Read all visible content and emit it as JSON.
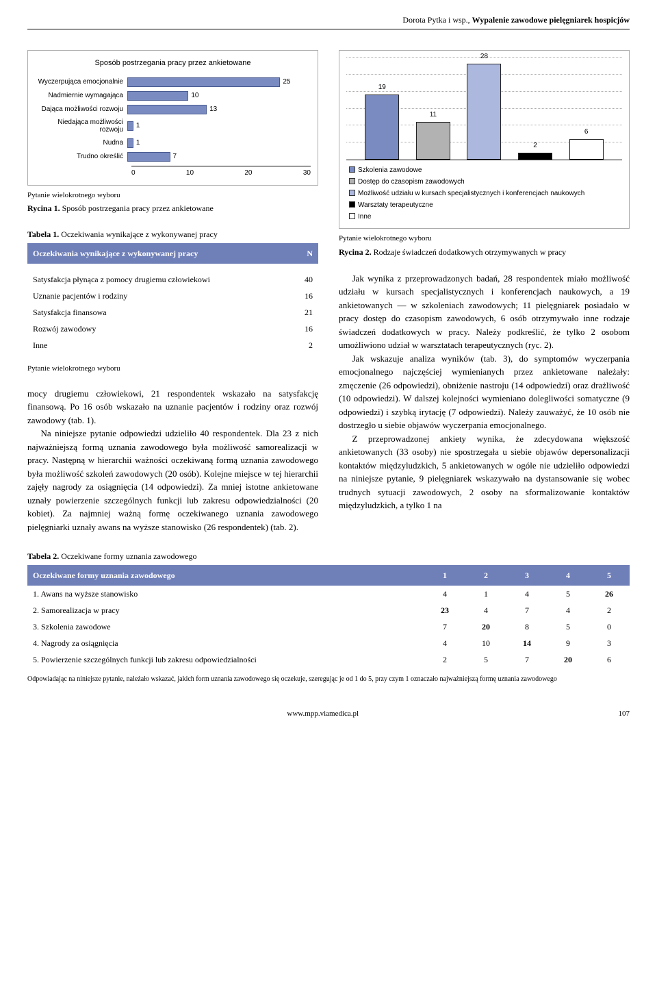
{
  "header": {
    "author": "Dorota Pytka i wsp.,",
    "title": "Wypalenie zawodowe pielęgniarek hospicjów"
  },
  "chart1": {
    "type": "bar-horizontal",
    "title": "Sposób postrzegania pracy przez ankietowane",
    "xmax": 30,
    "xticks": [
      "0",
      "10",
      "20",
      "30"
    ],
    "bar_color": "#7a8bc1",
    "bar_border": "#4a5b91",
    "rows": [
      {
        "label": "Wyczerpująca emocjonalnie",
        "value": 25
      },
      {
        "label": "Nadmiernie wymagająca",
        "value": 10
      },
      {
        "label": "Dająca możliwości rozwoju",
        "value": 13
      },
      {
        "label": "Niedająca możliwości rozwoju",
        "value": 1
      },
      {
        "label": "Nudna",
        "value": 1
      },
      {
        "label": "Trudno określić",
        "value": 7
      }
    ],
    "caption_note": "Pytanie wielokrotnego wyboru",
    "caption_label": "Rycina 1.",
    "caption_text": "Sposób postrzegania pracy przez ankietowane"
  },
  "chart2": {
    "type": "bar-vertical",
    "ymax": 30,
    "bars": [
      {
        "value": 19,
        "color": "#7a8bc1",
        "label": "Szkolenia zawodowe"
      },
      {
        "value": 11,
        "color": "#b2b2b2",
        "label": "Dostęp do czasopism zawodowych"
      },
      {
        "value": 28,
        "color": "#adb8df",
        "label": "Możliwość udziału w kursach specjalistycznych i konferencjach naukowych"
      },
      {
        "value": 2,
        "color": "#000000",
        "label": "Warsztaty terapeutyczne"
      },
      {
        "value": 6,
        "color": "#ffffff",
        "label": "Inne"
      }
    ],
    "caption_note": "Pytanie wielokrotnego wyboru",
    "caption_label": "Rycina 2.",
    "caption_text": "Rodzaje świadczeń dodatkowych otrzymywanych w pracy"
  },
  "table1": {
    "title_label": "Tabela 1.",
    "title_text": "Oczekiwania wynikające z wykonywanej pracy",
    "header_col1": "Oczekiwania wynikające z wykonywanej pracy",
    "header_col2": "N",
    "rows": [
      [
        "Satysfakcja płynąca z pomocy drugiemu człowiekowi",
        "40"
      ],
      [
        "Uznanie pacjentów i rodziny",
        "16"
      ],
      [
        "Satysfakcja finansowa",
        "21"
      ],
      [
        "Rozwój zawodowy",
        "16"
      ],
      [
        "Inne",
        "2"
      ]
    ],
    "note": "Pytanie wielokrotnego wyboru"
  },
  "body_left": [
    "mocy drugiemu człowiekowi, 21 respondentek wskazało na satysfakcję finansową. Po 16 osób wskazało na uznanie pacjentów i rodziny oraz rozwój zawodowy (tab. 1).",
    "Na niniejsze pytanie odpowiedzi udzieliło 40 respondentek. Dla 23 z nich najważniejszą formą uznania zawodowego była możliwość samorealizacji w pracy. Następną w hierarchii ważności oczekiwaną formą uznania zawodowego była możliwość szkoleń zawodowych (20 osób). Kolejne miejsce w tej hierarchii zajęły nagrody za osiągnięcia (14 odpowiedzi). Za mniej istotne ankietowane uznały powierzenie szczególnych funkcji lub zakresu odpowiedzialności (20 kobiet). Za najmniej ważną formę oczekiwanego uznania zawodowego pielęgniarki uznały awans na wyższe stanowisko (26 respondentek) (tab. 2)."
  ],
  "body_right": [
    "Jak wynika z przeprowadzonych badań, 28 respondentek miało możliwość udziału w kursach specjalistycznych i konferencjach naukowych, a 19 ankietowanych — w szkoleniach zawodowych; 11 pielęgniarek posiadało w pracy dostęp do czasopism zawodowych, 6 osób otrzymywało inne rodzaje świadczeń dodatkowych w pracy. Należy podkreślić, że tylko 2 osobom umożliwiono udział w warsztatach terapeutycznych (ryc. 2).",
    "Jak wskazuje analiza wyników (tab. 3), do symptomów wyczerpania emocjonalnego najczęściej wymienianych przez ankietowane należały: zmęczenie (26 odpowiedzi), obniżenie nastroju (14 odpowiedzi) oraz drażliwość (10 odpowiedzi). W dalszej kolejności wymieniano dolegliwości somatyczne (9 odpowiedzi) i szybką irytację (7 odpowiedzi). Należy zauważyć, że 10 osób nie dostrzegło u siebie objawów wyczerpania emocjonalnego.",
    "Z przeprowadzonej ankiety wynika, że zdecydowana większość ankietowanych (33 osoby) nie spostrzegała u siebie objawów depersonalizacji kontaktów międzyludzkich, 5 ankietowanych w ogóle nie udzieliło odpowiedzi na niniejsze pytanie, 9 pielęgniarek wskazywało na dystansowanie się wobec trudnych sytuacji zawodowych, 2 osoby na sformalizowanie kontaktów międzyludzkich, a tylko 1 na"
  ],
  "table2": {
    "title_label": "Tabela 2.",
    "title_text": "Oczekiwane formy uznania zawodowego",
    "header": [
      "Oczekiwane formy uznania zawodowego",
      "1",
      "2",
      "3",
      "4",
      "5"
    ],
    "rows": [
      {
        "cells": [
          "1. Awans na wyższe stanowisko",
          "4",
          "1",
          "4",
          "5",
          "26"
        ],
        "bold_idx": 5
      },
      {
        "cells": [
          "2. Samorealizacja w pracy",
          "23",
          "4",
          "7",
          "4",
          "2"
        ],
        "bold_idx": 1
      },
      {
        "cells": [
          "3. Szkolenia zawodowe",
          "7",
          "20",
          "8",
          "5",
          "0"
        ],
        "bold_idx": 2
      },
      {
        "cells": [
          "4. Nagrody za osiągnięcia",
          "4",
          "10",
          "14",
          "9",
          "3"
        ],
        "bold_idx": 3
      },
      {
        "cells": [
          "5. Powierzenie szczególnych funkcji lub zakresu odpowiedzialności",
          "2",
          "5",
          "7",
          "20",
          "6"
        ],
        "bold_idx": 4
      }
    ],
    "footnote": "Odpowiadając na niniejsze pytanie, należało wskazać, jakich form uznania zawodowego się oczekuje, szeregując je od 1 do 5, przy czym 1 oznaczało najważniejszą formę uznania zawodowego"
  },
  "footer": {
    "url": "www.mpp.viamedica.pl",
    "page": "107"
  }
}
